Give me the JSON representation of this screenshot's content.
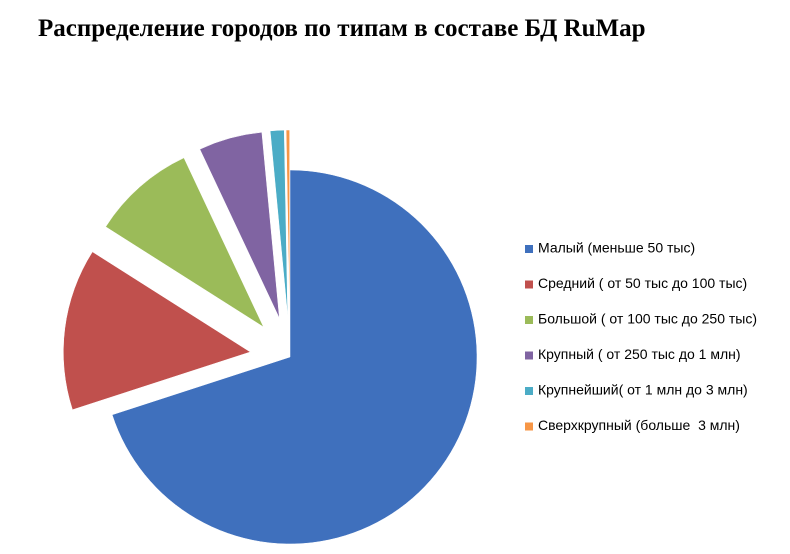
{
  "chart_data": {
    "type": "pie",
    "title": "Распределение городов по типам в составе БД RuMap",
    "categories": [
      "Малый (меньше 50 тыс)",
      "Средний ( от 50 тыс до 100 тыс)",
      "Большой ( от 100 тыс до 250 тыс)",
      "Крупный ( от 250 тыс до 1 млн)",
      "Крупнейший( от 1 млн до 3 млн)",
      "Сверхкрупный (больше  3 млн)"
    ],
    "values": [
      70,
      14,
      9,
      5.5,
      1.2,
      0.3
    ],
    "colors": [
      "#3f70bd",
      "#c0504d",
      "#9bbb59",
      "#8064a2",
      "#4bacc6",
      "#f79646"
    ],
    "legend": "right"
  }
}
